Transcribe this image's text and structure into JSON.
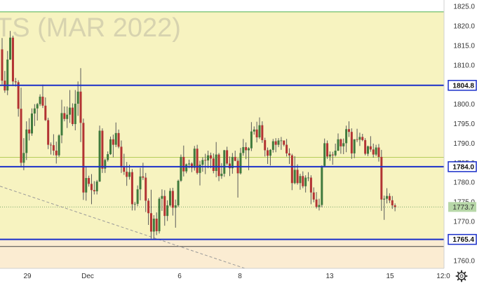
{
  "chart_data": {
    "type": "candlestick",
    "watermark": "TS (MAR 2022)",
    "ylim": [
      1757.5,
      1826.0
    ],
    "y_ticks": [
      "1825.0",
      "1820.0",
      "1815.0",
      "1810.0",
      "1805.0",
      "1800.0",
      "1795.0",
      "1790.0",
      "1785.0",
      "1780.0",
      "1775.0",
      "1770.0",
      "1765.0",
      "1760.0"
    ],
    "x_ticks": [
      "29",
      "Dec",
      "6",
      "8",
      "13",
      "15",
      "12:0"
    ],
    "levels": [
      {
        "value": 1804.8,
        "label": "1804.8",
        "color": "#1a2fc9"
      },
      {
        "value": 1784.0,
        "label": "1784.0",
        "color": "#1a2fc9"
      },
      {
        "value": 1765.4,
        "label": "1765.4",
        "color": "#1a2fc9"
      }
    ],
    "current_price": {
      "value": 1773.7,
      "label": "1773.7",
      "color": "#b7d7a8"
    },
    "guide_lines": [
      {
        "value": 1823.6,
        "color": "#4caf50"
      },
      {
        "value": 1786.4,
        "color": "#b5cc5a"
      },
      {
        "value": 1763.6,
        "color": "#444444"
      }
    ],
    "zones": [
      {
        "from": 1765.4,
        "to": 1823.6,
        "color": "#f7f3c0"
      },
      {
        "from": 1757.5,
        "to": 1765.4,
        "color": "#fbecd2"
      }
    ],
    "colors": {
      "up": "#3f7a3d",
      "down": "#b23333",
      "wick": "#555555",
      "trend": "#999999"
    },
    "trend_line": [
      [
        0,
        1779.0
      ],
      [
        349,
        1758.0
      ]
    ],
    "candles": [
      [
        1814.0,
        1816.9,
        1805.0,
        1806.0
      ],
      [
        1806.0,
        1808.5,
        1802.9,
        1803.5
      ],
      [
        1803.5,
        1813.6,
        1802.3,
        1811.4
      ],
      [
        1811.4,
        1818.7,
        1811.3,
        1817.0
      ],
      [
        1817.0,
        1817.5,
        1804.6,
        1805.8
      ],
      [
        1805.8,
        1806.7,
        1804.5,
        1805.6
      ],
      [
        1805.6,
        1806.1,
        1796.8,
        1798.8
      ],
      [
        1798.8,
        1804.2,
        1783.8,
        1785.0
      ],
      [
        1785.0,
        1791.3,
        1783.1,
        1787.5
      ],
      [
        1787.5,
        1795.6,
        1785.7,
        1793.5
      ],
      [
        1793.5,
        1796.4,
        1790.7,
        1792.5
      ],
      [
        1792.5,
        1798.9,
        1791.9,
        1797.6
      ],
      [
        1797.6,
        1800.0,
        1794.4,
        1798.9
      ],
      [
        1798.9,
        1800.3,
        1795.8,
        1800.0
      ],
      [
        1800.0,
        1802.5,
        1799.5,
        1801.9
      ],
      [
        1801.9,
        1805.0,
        1799.0,
        1799.6
      ],
      [
        1799.6,
        1801.7,
        1795.7,
        1795.9
      ],
      [
        1795.9,
        1796.5,
        1788.5,
        1789.6
      ],
      [
        1789.6,
        1790.2,
        1787.1,
        1789.5
      ],
      [
        1789.5,
        1792.3,
        1786.9,
        1788.1
      ],
      [
        1788.1,
        1790.4,
        1784.8,
        1786.9
      ],
      [
        1786.9,
        1792.3,
        1786.5,
        1792.0
      ],
      [
        1792.0,
        1801.1,
        1790.0,
        1797.7
      ],
      [
        1797.7,
        1799.4,
        1795.6,
        1796.2
      ],
      [
        1796.2,
        1799.4,
        1793.9,
        1797.3
      ],
      [
        1797.3,
        1803.6,
        1795.2,
        1799.1
      ],
      [
        1799.1,
        1800.2,
        1794.4,
        1794.9
      ],
      [
        1794.9,
        1803.6,
        1793.3,
        1800.1
      ],
      [
        1800.1,
        1805.8,
        1797.0,
        1803.2
      ],
      [
        1803.2,
        1809.2,
        1790.3,
        1795.2
      ],
      [
        1795.2,
        1796.3,
        1775.5,
        1777.4
      ],
      [
        1777.4,
        1784.0,
        1775.3,
        1781.1
      ],
      [
        1781.1,
        1781.7,
        1778.9,
        1779.6
      ],
      [
        1779.6,
        1782.1,
        1774.4,
        1778.0
      ],
      [
        1778.0,
        1780.3,
        1776.9,
        1777.7
      ],
      [
        1777.7,
        1780.6,
        1776.9,
        1780.2
      ],
      [
        1780.2,
        1794.5,
        1780.1,
        1793.2
      ],
      [
        1793.2,
        1793.8,
        1782.4,
        1783.5
      ],
      [
        1783.5,
        1786.1,
        1782.4,
        1785.7
      ],
      [
        1785.7,
        1787.9,
        1785.3,
        1787.2
      ],
      [
        1787.2,
        1791.7,
        1787.0,
        1791.0
      ],
      [
        1791.0,
        1792.2,
        1786.4,
        1789.6
      ],
      [
        1789.6,
        1795.3,
        1789.0,
        1792.6
      ],
      [
        1792.6,
        1793.5,
        1788.7,
        1789.1
      ],
      [
        1789.1,
        1790.7,
        1782.4,
        1783.8
      ],
      [
        1783.8,
        1787.3,
        1781.9,
        1782.7
      ],
      [
        1782.7,
        1785.2,
        1779.1,
        1781.4
      ],
      [
        1781.4,
        1784.5,
        1780.7,
        1782.6
      ],
      [
        1782.6,
        1783.4,
        1772.8,
        1774.4
      ],
      [
        1774.4,
        1775.0,
        1772.8,
        1774.5
      ],
      [
        1774.5,
        1779.2,
        1773.9,
        1778.2
      ],
      [
        1778.2,
        1783.7,
        1775.4,
        1781.5
      ],
      [
        1781.5,
        1785.0,
        1780.6,
        1781.2
      ],
      [
        1781.2,
        1782.4,
        1772.4,
        1775.3
      ],
      [
        1775.3,
        1775.9,
        1769.1,
        1772.1
      ],
      [
        1772.1,
        1778.1,
        1765.6,
        1767.4
      ],
      [
        1767.4,
        1771.6,
        1765.3,
        1770.7
      ],
      [
        1770.7,
        1772.3,
        1766.5,
        1767.5
      ],
      [
        1767.5,
        1776.2,
        1766.9,
        1775.8
      ],
      [
        1775.8,
        1778.2,
        1772.7,
        1776.5
      ],
      [
        1776.5,
        1778.0,
        1768.9,
        1771.4
      ],
      [
        1771.4,
        1775.4,
        1770.1,
        1774.1
      ],
      [
        1774.1,
        1778.5,
        1773.8,
        1777.8
      ],
      [
        1777.8,
        1778.6,
        1771.5,
        1773.5
      ],
      [
        1773.5,
        1775.6,
        1768.4,
        1774.1
      ],
      [
        1774.1,
        1780.7,
        1773.7,
        1780.4
      ],
      [
        1780.4,
        1787.1,
        1780.1,
        1786.5
      ],
      [
        1786.5,
        1789.4,
        1781.5,
        1782.8
      ],
      [
        1782.8,
        1784.8,
        1782.3,
        1784.6
      ],
      [
        1784.6,
        1785.8,
        1783.6,
        1784.8
      ],
      [
        1784.8,
        1785.1,
        1782.6,
        1783.7
      ],
      [
        1783.7,
        1789.3,
        1783.0,
        1788.6
      ],
      [
        1788.6,
        1789.6,
        1782.0,
        1782.4
      ],
      [
        1782.4,
        1785.5,
        1779.2,
        1784.5
      ],
      [
        1784.5,
        1786.4,
        1782.7,
        1785.7
      ],
      [
        1785.7,
        1787.3,
        1782.1,
        1785.6
      ],
      [
        1785.6,
        1788.1,
        1783.6,
        1786.9
      ],
      [
        1786.9,
        1787.6,
        1783.6,
        1786.1
      ],
      [
        1786.1,
        1787.4,
        1782.3,
        1782.9
      ],
      [
        1782.9,
        1790.3,
        1781.3,
        1787.1
      ],
      [
        1787.1,
        1787.5,
        1780.3,
        1781.6
      ],
      [
        1781.6,
        1784.9,
        1780.9,
        1782.2
      ],
      [
        1782.2,
        1788.3,
        1781.4,
        1788.2
      ],
      [
        1788.2,
        1789.1,
        1784.4,
        1784.8
      ],
      [
        1784.8,
        1786.6,
        1781.6,
        1783.6
      ],
      [
        1783.6,
        1787.5,
        1782.2,
        1786.5
      ],
      [
        1786.5,
        1788.1,
        1785.4,
        1785.5
      ],
      [
        1785.5,
        1786.2,
        1776.1,
        1782.3
      ],
      [
        1782.3,
        1788.8,
        1782.0,
        1787.5
      ],
      [
        1787.5,
        1791.1,
        1786.8,
        1789.0
      ],
      [
        1789.0,
        1790.2,
        1785.9,
        1788.2
      ],
      [
        1788.2,
        1789.0,
        1783.1,
        1788.7
      ],
      [
        1788.7,
        1795.4,
        1788.0,
        1793.0
      ],
      [
        1793.0,
        1794.3,
        1792.2,
        1793.5
      ],
      [
        1793.5,
        1795.5,
        1790.2,
        1791.5
      ],
      [
        1791.5,
        1796.6,
        1791.1,
        1794.6
      ],
      [
        1794.6,
        1795.6,
        1790.1,
        1790.8
      ],
      [
        1790.8,
        1791.4,
        1786.6,
        1788.2
      ],
      [
        1788.2,
        1788.9,
        1784.7,
        1786.8
      ],
      [
        1786.8,
        1788.5,
        1784.3,
        1788.3
      ],
      [
        1788.3,
        1791.1,
        1787.6,
        1790.5
      ],
      [
        1790.5,
        1791.3,
        1787.7,
        1789.6
      ],
      [
        1789.6,
        1791.3,
        1789.0,
        1790.7
      ],
      [
        1790.7,
        1791.6,
        1788.3,
        1790.7
      ],
      [
        1790.7,
        1790.7,
        1789.2,
        1789.6
      ],
      [
        1789.6,
        1791.1,
        1786.6,
        1787.4
      ],
      [
        1787.4,
        1788.7,
        1784.7,
        1786.9
      ],
      [
        1786.9,
        1787.3,
        1778.0,
        1779.8
      ],
      [
        1779.8,
        1786.7,
        1779.5,
        1783.2
      ],
      [
        1783.2,
        1784.6,
        1779.4,
        1779.8
      ],
      [
        1779.8,
        1782.2,
        1778.1,
        1781.6
      ],
      [
        1781.6,
        1782.8,
        1778.5,
        1779.0
      ],
      [
        1779.0,
        1781.8,
        1777.4,
        1781.2
      ],
      [
        1781.2,
        1782.6,
        1780.3,
        1781.2
      ],
      [
        1781.2,
        1781.8,
        1774.4,
        1777.4
      ],
      [
        1777.4,
        1778.7,
        1774.9,
        1775.6
      ],
      [
        1775.6,
        1777.5,
        1773.3,
        1773.7
      ],
      [
        1773.7,
        1775.8,
        1772.8,
        1774.2
      ],
      [
        1774.2,
        1784.3,
        1773.6,
        1784.2
      ],
      [
        1784.2,
        1791.2,
        1784.1,
        1790.0
      ],
      [
        1790.0,
        1790.7,
        1786.0,
        1786.6
      ],
      [
        1786.6,
        1787.9,
        1785.5,
        1787.1
      ],
      [
        1787.1,
        1787.8,
        1784.5,
        1786.9
      ],
      [
        1786.9,
        1789.9,
        1786.6,
        1788.1
      ],
      [
        1788.1,
        1792.5,
        1788.0,
        1791.0
      ],
      [
        1791.0,
        1791.2,
        1787.3,
        1789.2
      ],
      [
        1789.2,
        1791.2,
        1787.2,
        1790.0
      ],
      [
        1790.0,
        1794.5,
        1787.7,
        1793.6
      ],
      [
        1793.6,
        1795.6,
        1791.6,
        1792.9
      ],
      [
        1792.9,
        1793.8,
        1786.0,
        1787.4
      ],
      [
        1787.4,
        1791.0,
        1786.2,
        1791.0
      ],
      [
        1791.0,
        1793.7,
        1790.3,
        1790.9
      ],
      [
        1790.9,
        1792.7,
        1789.3,
        1791.6
      ],
      [
        1791.6,
        1792.4,
        1790.5,
        1790.8
      ],
      [
        1790.8,
        1791.3,
        1786.9,
        1787.3
      ],
      [
        1787.3,
        1789.4,
        1786.7,
        1789.2
      ],
      [
        1789.2,
        1791.8,
        1787.8,
        1788.4
      ],
      [
        1788.4,
        1789.9,
        1786.3,
        1787.1
      ],
      [
        1787.1,
        1789.6,
        1786.7,
        1788.9
      ],
      [
        1788.9,
        1789.8,
        1785.3,
        1786.5
      ],
      [
        1786.5,
        1788.3,
        1772.7,
        1775.6
      ],
      [
        1775.6,
        1776.6,
        1770.4,
        1775.8
      ],
      [
        1775.8,
        1778.5,
        1774.6,
        1776.5
      ],
      [
        1776.5,
        1777.2,
        1774.7,
        1775.4
      ],
      [
        1775.4,
        1776.5,
        1773.2,
        1774.1
      ],
      [
        1774.1,
        1774.6,
        1772.6,
        1773.7
      ]
    ]
  }
}
